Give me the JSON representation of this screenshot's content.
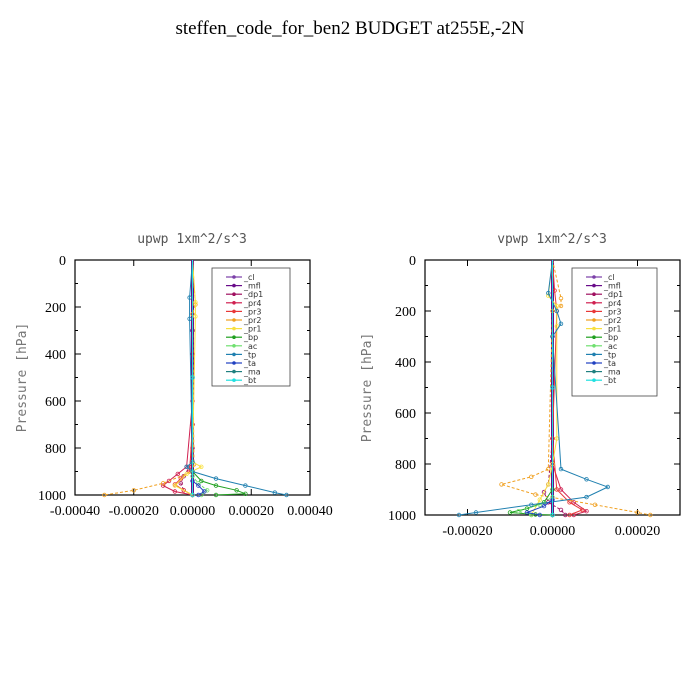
{
  "title": "steffen_code_for_ben2  BUDGET at255E,-2N",
  "legend_labels": [
    "_cl",
    "_mfl",
    "_dp1",
    "_pr4",
    "_pr3",
    "_pr2",
    "_pr1",
    "_bp",
    "_ac",
    "_tp",
    "_ta",
    "_ma",
    "_bt"
  ],
  "colors": {
    "_cl": "#7b3fa8",
    "_mfl": "#6a0d8a",
    "_dp1": "#a01060",
    "_pr4": "#d02050",
    "_pr3": "#e83838",
    "_pr2": "#f0a020",
    "_pr1": "#f8e040",
    "_bp": "#20a020",
    "_ac": "#70e070",
    "_tp": "#2080b0",
    "_ta": "#2040c0",
    "_ma": "#208080",
    "_bt": "#20e0e0"
  },
  "chart_data": [
    {
      "type": "line",
      "title": "upwp  1xm^2/s^3",
      "ylabel": "Pressure [hPa]",
      "xlim": [
        -0.0004,
        0.0004
      ],
      "ylim": [
        1000,
        0
      ],
      "xticks": [
        "-0.00040",
        "-0.00020",
        "0.00000",
        "0.00020",
        "0.00040"
      ],
      "yticks": [
        "0",
        "200",
        "400",
        "600",
        "800",
        "1000"
      ],
      "legend_position": "top-right",
      "series": [
        {
          "name": "_cl",
          "x": [
            0,
            0,
            0,
            0
          ],
          "y": [
            0,
            300,
            700,
            1000
          ]
        },
        {
          "name": "_mfl",
          "x": [
            0,
            0,
            0,
            0
          ],
          "y": [
            0,
            300,
            700,
            1000
          ]
        },
        {
          "name": "_dp1",
          "x": [
            0,
            0,
            0,
            -1e-05,
            -3e-05,
            -4e-05,
            -3e-05,
            0
          ],
          "y": [
            0,
            400,
            800,
            880,
            920,
            950,
            980,
            1000
          ]
        },
        {
          "name": "_pr4",
          "x": [
            0,
            0,
            -2e-05,
            -5e-05,
            -8e-05,
            -0.0001,
            -6e-05,
            0
          ],
          "y": [
            0,
            600,
            880,
            910,
            940,
            960,
            985,
            1000
          ]
        },
        {
          "name": "_pr3",
          "x": [
            0,
            0,
            -1e-05,
            -4e-05,
            -6e-05,
            -3e-05,
            0
          ],
          "y": [
            0,
            700,
            900,
            930,
            955,
            980,
            1000
          ]
        },
        {
          "name": "_pr2",
          "x": [
            0,
            1e-05,
            0,
            5e-06,
            0,
            -0.0001,
            -0.0002,
            -0.0003
          ],
          "y": [
            0,
            190,
            230,
            870,
            900,
            950,
            980,
            1000
          ]
        },
        {
          "name": "_pr1",
          "x": [
            0,
            1e-05,
            1e-05,
            0,
            3e-05,
            -2e-05,
            -6e-05,
            0
          ],
          "y": [
            0,
            180,
            240,
            860,
            880,
            910,
            960,
            1000
          ]
        },
        {
          "name": "_bp",
          "x": [
            0,
            0,
            3e-05,
            8e-05,
            0.00015,
            0.00018,
            8e-05
          ],
          "y": [
            0,
            900,
            940,
            960,
            980,
            995,
            1000
          ]
        },
        {
          "name": "_ac",
          "x": [
            0,
            0,
            2e-05,
            5e-05,
            3e-05
          ],
          "y": [
            0,
            920,
            950,
            980,
            1000
          ]
        },
        {
          "name": "_tp",
          "x": [
            0,
            -1e-05,
            -1e-05,
            0,
            -2e-05,
            0,
            8e-05,
            0.00018,
            0.00028,
            0.00032
          ],
          "y": [
            0,
            160,
            250,
            860,
            880,
            900,
            930,
            960,
            990,
            1000
          ]
        },
        {
          "name": "_ta",
          "x": [
            0,
            0,
            2e-05,
            4e-05,
            2e-05
          ],
          "y": [
            0,
            940,
            960,
            985,
            1000
          ]
        },
        {
          "name": "_ma",
          "x": [
            0,
            0,
            0
          ],
          "y": [
            0,
            500,
            1000
          ]
        },
        {
          "name": "_bt",
          "x": [
            0,
            0,
            0
          ],
          "y": [
            0,
            500,
            1000
          ]
        }
      ]
    },
    {
      "type": "line",
      "title": "vpwp  1xm^2/s^3",
      "ylabel": "Pressure [hPa]",
      "xlim": [
        -0.0003,
        0.0003
      ],
      "ylim": [
        1000,
        0
      ],
      "xticks": [
        "-0.00020",
        "0.00000",
        "0.00020"
      ],
      "yticks": [
        "0",
        "200",
        "400",
        "600",
        "800",
        "1000"
      ],
      "legend_position": "top-right",
      "series": [
        {
          "name": "_cl",
          "x": [
            0,
            0,
            0,
            0
          ],
          "y": [
            0,
            300,
            700,
            1000
          ]
        },
        {
          "name": "_mfl",
          "x": [
            0,
            0,
            0,
            0
          ],
          "y": [
            0,
            300,
            700,
            1000
          ]
        },
        {
          "name": "_dp1",
          "x": [
            0,
            0,
            -1e-05,
            -2e-05,
            -1e-05,
            2e-05,
            3e-05
          ],
          "y": [
            0,
            700,
            880,
            910,
            950,
            980,
            1000
          ]
        },
        {
          "name": "_pr4",
          "x": [
            0,
            0,
            2e-05,
            5e-05,
            8e-05,
            5e-05
          ],
          "y": [
            0,
            800,
            900,
            950,
            985,
            1000
          ]
        },
        {
          "name": "_pr3",
          "x": [
            0,
            5e-06,
            1e-05,
            0,
            1e-05,
            4e-05,
            7e-05,
            4e-05
          ],
          "y": [
            0,
            120,
            200,
            700,
            900,
            950,
            980,
            1000
          ]
        },
        {
          "name": "_pr2",
          "x": [
            0,
            2e-05,
            2e-05,
            0,
            -1e-05,
            -5e-05,
            -0.00012,
            -4e-05,
            0.0001,
            0.0002,
            0.00023
          ],
          "y": [
            0,
            150,
            180,
            200,
            820,
            850,
            880,
            920,
            960,
            990,
            1000
          ]
        },
        {
          "name": "_pr1",
          "x": [
            0,
            -1e-05,
            1e-05,
            1e-05,
            1e-05,
            0,
            -1e-05,
            -3e-05,
            -5e-05
          ],
          "y": [
            0,
            140,
            180,
            260,
            700,
            800,
            880,
            940,
            1000
          ]
        },
        {
          "name": "_bp",
          "x": [
            0,
            0,
            -2e-05,
            -6e-05,
            -0.0001,
            -4e-05,
            0
          ],
          "y": [
            0,
            900,
            950,
            975,
            990,
            998,
            1000
          ]
        },
        {
          "name": "_ac",
          "x": [
            0,
            0,
            -3e-05,
            -8e-05,
            -5e-05
          ],
          "y": [
            0,
            930,
            960,
            985,
            1000
          ]
        },
        {
          "name": "_tp",
          "x": [
            0,
            -1e-05,
            1e-05,
            2e-05,
            0,
            2e-05,
            8e-05,
            0.00013,
            8e-05,
            -5e-05,
            -0.00018,
            -0.00022
          ],
          "y": [
            0,
            130,
            200,
            250,
            300,
            820,
            860,
            890,
            930,
            960,
            990,
            1000
          ]
        },
        {
          "name": "_ta",
          "x": [
            0,
            0,
            -2e-05,
            -6e-05,
            -3e-05
          ],
          "y": [
            0,
            940,
            965,
            990,
            1000
          ]
        },
        {
          "name": "_ma",
          "x": [
            0,
            0,
            0
          ],
          "y": [
            0,
            500,
            1000
          ]
        },
        {
          "name": "_bt",
          "x": [
            0,
            0,
            0
          ],
          "y": [
            0,
            500,
            1000
          ]
        }
      ]
    }
  ]
}
